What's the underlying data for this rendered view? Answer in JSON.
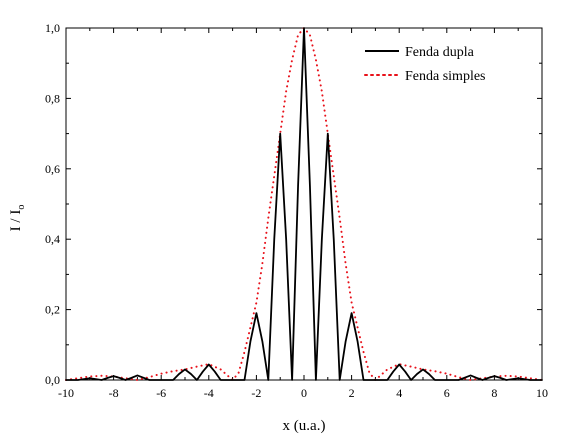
{
  "chart_data": {
    "type": "line",
    "xlabel": "x (u.a.)",
    "ylabel": "I / I",
    "ylabel_subscript": "o",
    "xlim": [
      -10,
      10
    ],
    "ylim": [
      0,
      1.0
    ],
    "x_ticks": [
      -10,
      -8,
      -6,
      -4,
      -2,
      0,
      2,
      4,
      6,
      8,
      10
    ],
    "x_tick_labels": [
      "-10",
      "-8",
      "-6",
      "-4",
      "-2",
      "0",
      "2",
      "4",
      "6",
      "8",
      "10"
    ],
    "y_ticks": [
      0,
      0.2,
      0.4,
      0.6,
      0.8,
      1.0
    ],
    "y_tick_labels": [
      "0,0",
      "0,2",
      "0,4",
      "0,6",
      "0,8",
      "1,0"
    ],
    "grid": false,
    "legend_position": "top-right",
    "series": [
      {
        "name": "Fenda dupla",
        "style": "solid",
        "color": "#000000",
        "x": [
          -10,
          -9.5,
          -9,
          -8.5,
          -8.25,
          -8,
          -7.75,
          -7.5,
          -7.25,
          -7,
          -6.5,
          -6,
          -5.5,
          -5.25,
          -5,
          -4.75,
          -4.5,
          -4.25,
          -4,
          -3.75,
          -3.5,
          -3,
          -2.5,
          -2.25,
          -2,
          -1.75,
          -1.5,
          -1.25,
          -1,
          -0.75,
          -0.5,
          -0.25,
          0,
          0.25,
          0.5,
          0.75,
          1,
          1.25,
          1.5,
          1.75,
          2,
          2.25,
          2.5,
          3,
          3.5,
          3.75,
          4,
          4.25,
          4.5,
          4.75,
          5,
          5.25,
          5.5,
          6,
          6.5,
          7,
          7.25,
          7.5,
          7.75,
          8,
          8.25,
          8.5,
          9,
          9.5,
          10
        ],
        "y": [
          0,
          0,
          0.005,
          0,
          0.006,
          0.011,
          0.006,
          0,
          0.006,
          0.013,
          0,
          0,
          0,
          0.017,
          0.03,
          0.017,
          0,
          0.024,
          0.044,
          0.024,
          0,
          0,
          0,
          0.11,
          0.19,
          0.11,
          0,
          0.4,
          0.7,
          0.4,
          0,
          0.55,
          1.0,
          0.55,
          0,
          0.4,
          0.7,
          0.4,
          0,
          0.11,
          0.19,
          0.11,
          0,
          0,
          0,
          0.024,
          0.044,
          0.024,
          0,
          0.017,
          0.03,
          0.017,
          0,
          0,
          0,
          0.013,
          0.006,
          0,
          0.006,
          0.011,
          0.006,
          0,
          0.005,
          0,
          0
        ]
      },
      {
        "name": "Fenda simples",
        "style": "dotted",
        "color": "#e8111a",
        "x": [
          -10,
          -9.5,
          -9,
          -8.5,
          -8,
          -7.5,
          -7,
          -6.5,
          -6,
          -5.5,
          -5,
          -4.5,
          -4,
          -3.5,
          -3,
          -2.75,
          -2.5,
          -2.25,
          -2,
          -1.75,
          -1.5,
          -1.25,
          -1,
          -0.75,
          -0.5,
          -0.25,
          0,
          0.25,
          0.5,
          0.75,
          1,
          1.25,
          1.5,
          1.75,
          2,
          2.25,
          2.5,
          2.75,
          3,
          3.5,
          4,
          4.5,
          5,
          5.5,
          6,
          6.5,
          7,
          7.5,
          8,
          8.5,
          9,
          9.5,
          10
        ],
        "y": [
          0,
          0.005,
          0.01,
          0.012,
          0.01,
          0.005,
          0,
          0.008,
          0.018,
          0.025,
          0.03,
          0.038,
          0.045,
          0.03,
          0,
          0.02,
          0.08,
          0.15,
          0.22,
          0.33,
          0.46,
          0.58,
          0.7,
          0.82,
          0.91,
          0.98,
          1.0,
          0.98,
          0.91,
          0.82,
          0.7,
          0.58,
          0.46,
          0.33,
          0.22,
          0.15,
          0.08,
          0.02,
          0,
          0.03,
          0.045,
          0.038,
          0.03,
          0.025,
          0.018,
          0.008,
          0,
          0.005,
          0.01,
          0.012,
          0.01,
          0.005,
          0
        ]
      }
    ]
  }
}
